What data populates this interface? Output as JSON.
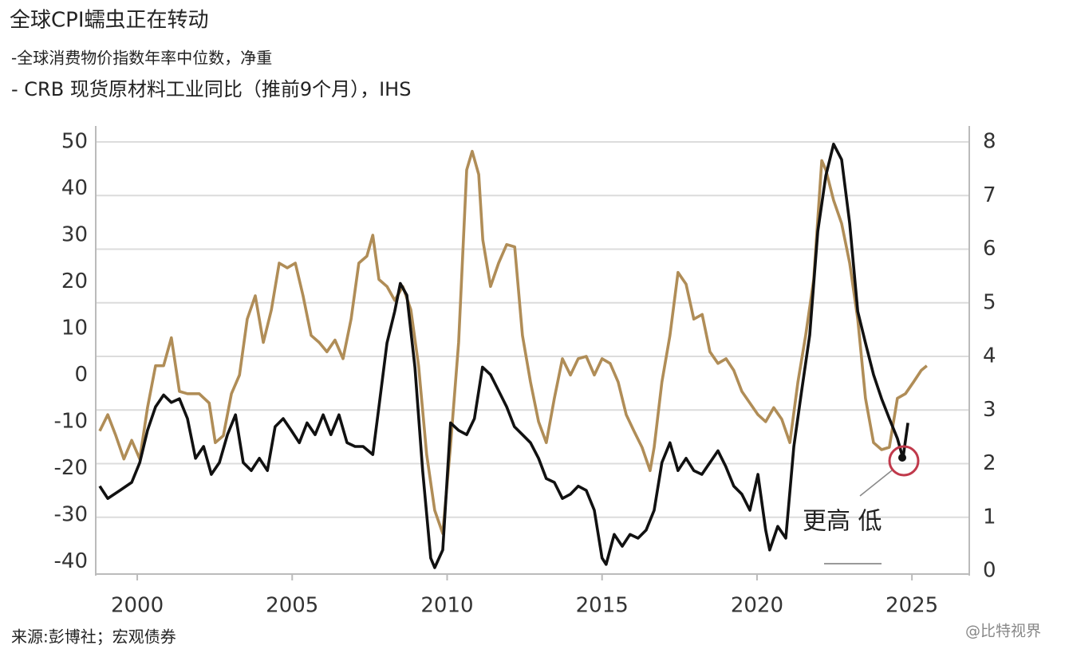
{
  "chart_data": {
    "type": "line",
    "title": "全球CPI蠕虫正在转动",
    "source": "来源:彭博社；宏观债券",
    "annotation": "更高 低",
    "watermark": "@比特视界",
    "xlim": [
      1998.66,
      2026.85
    ],
    "xticks": [
      2000,
      2005,
      2010,
      2015,
      2020,
      2025
    ],
    "ylim": [
      -42,
      50
    ],
    "yticks": [
      -40,
      -30,
      -20,
      -10,
      0,
      10,
      20,
      30,
      40,
      50
    ],
    "y2lim": [
      0,
      8
    ],
    "y2ticks": [
      0,
      1,
      2,
      3,
      4,
      5,
      6,
      7,
      8
    ],
    "grid": true,
    "series": [
      {
        "name": "-全球消费物价指数年率中位数，净重",
        "color": "#111111",
        "axis": "y2",
        "x": [
          1998.79,
          1999.05,
          1999.44,
          1999.82,
          2000.08,
          2000.33,
          2000.59,
          2000.85,
          2001.1,
          2001.36,
          2001.62,
          2001.88,
          2002.14,
          2002.39,
          2002.65,
          2002.91,
          2003.17,
          2003.42,
          2003.68,
          2003.94,
          2004.2,
          2004.45,
          2004.71,
          2004.97,
          2005.23,
          2005.48,
          2005.74,
          2006.0,
          2006.25,
          2006.51,
          2006.77,
          2007.03,
          2007.29,
          2007.6,
          2007.8,
          2008.06,
          2008.31,
          2008.49,
          2008.7,
          2008.96,
          2009.21,
          2009.47,
          2009.6,
          2009.86,
          2010.11,
          2010.37,
          2010.63,
          2010.88,
          2011.14,
          2011.4,
          2011.66,
          2011.92,
          2012.17,
          2012.43,
          2012.69,
          2012.95,
          2013.2,
          2013.46,
          2013.72,
          2013.98,
          2014.23,
          2014.49,
          2014.75,
          2015.0,
          2015.13,
          2015.39,
          2015.65,
          2015.9,
          2016.16,
          2016.42,
          2016.68,
          2016.93,
          2017.19,
          2017.45,
          2017.71,
          2017.96,
          2018.22,
          2018.48,
          2018.74,
          2018.99,
          2019.25,
          2019.51,
          2019.77,
          2020.03,
          2020.28,
          2020.41,
          2020.67,
          2020.93,
          2021.19,
          2021.44,
          2021.7,
          2021.96,
          2022.22,
          2022.47,
          2022.73,
          2022.99,
          2023.25,
          2023.5,
          2023.76,
          2024.02,
          2024.27,
          2024.53,
          2024.71,
          2024.87
        ],
        "values": [
          1.58,
          1.35,
          1.5,
          1.65,
          2.02,
          2.62,
          3.06,
          3.28,
          3.14,
          3.21,
          2.84,
          2.1,
          2.32,
          1.8,
          2.02,
          2.54,
          2.91,
          2.02,
          1.87,
          2.1,
          1.87,
          2.69,
          2.84,
          2.62,
          2.39,
          2.76,
          2.54,
          2.91,
          2.54,
          2.91,
          2.39,
          2.32,
          2.32,
          2.17,
          3.06,
          4.25,
          4.84,
          5.36,
          5.14,
          3.8,
          1.87,
          0.24,
          0.06,
          0.39,
          2.76,
          2.62,
          2.54,
          2.84,
          3.8,
          3.66,
          3.36,
          3.06,
          2.69,
          2.54,
          2.39,
          2.1,
          1.72,
          1.65,
          1.35,
          1.43,
          1.58,
          1.5,
          1.13,
          0.24,
          0.12,
          0.68,
          0.46,
          0.68,
          0.61,
          0.76,
          1.13,
          2.02,
          2.39,
          1.87,
          2.1,
          1.87,
          1.8,
          2.02,
          2.24,
          1.95,
          1.58,
          1.43,
          1.13,
          1.8,
          0.76,
          0.39,
          0.83,
          0.61,
          2.32,
          3.36,
          4.4,
          6.33,
          7.37,
          7.96,
          7.67,
          6.48,
          4.84,
          4.25,
          3.66,
          3.21,
          2.84,
          2.47,
          2.1,
          2.76
        ]
      },
      {
        "name": "- CRB 现货原材料工业同比（推前9个月），IHS",
        "color": "#b08d57",
        "axis": "y",
        "x": [
          1998.79,
          1999.05,
          1999.31,
          1999.57,
          1999.82,
          2000.08,
          2000.33,
          2000.59,
          2000.85,
          2001.1,
          2001.36,
          2001.62,
          2002.0,
          2002.32,
          2002.52,
          2002.78,
          2003.04,
          2003.3,
          2003.55,
          2003.81,
          2004.07,
          2004.33,
          2004.58,
          2004.84,
          2005.1,
          2005.35,
          2005.61,
          2005.87,
          2006.12,
          2006.38,
          2006.64,
          2006.9,
          2007.15,
          2007.41,
          2007.6,
          2007.8,
          2008.06,
          2008.31,
          2008.57,
          2008.83,
          2009.08,
          2009.34,
          2009.6,
          2009.86,
          2010.11,
          2010.37,
          2010.63,
          2010.81,
          2011.02,
          2011.15,
          2011.4,
          2011.66,
          2011.92,
          2012.18,
          2012.43,
          2012.69,
          2012.95,
          2013.2,
          2013.46,
          2013.72,
          2013.98,
          2014.23,
          2014.49,
          2014.75,
          2015.0,
          2015.26,
          2015.52,
          2015.78,
          2016.03,
          2016.29,
          2016.55,
          2016.68,
          2016.93,
          2017.19,
          2017.45,
          2017.71,
          2017.96,
          2018.23,
          2018.48,
          2018.74,
          2019.0,
          2019.25,
          2019.51,
          2019.77,
          2020.03,
          2020.28,
          2020.54,
          2020.8,
          2021.06,
          2021.32,
          2021.57,
          2021.83,
          2022.09,
          2022.22,
          2022.47,
          2022.73,
          2022.99,
          2023.25,
          2023.5,
          2023.76,
          2024.02,
          2024.27,
          2024.53,
          2024.79,
          2025.05,
          2025.3,
          2025.48
        ],
        "values": [
          -12,
          -8.5,
          -13,
          -18,
          -14,
          -18,
          -7,
          2,
          2,
          8,
          -3.5,
          -4,
          -4,
          -6,
          -14.5,
          -13,
          -4,
          0,
          12,
          17,
          7,
          14,
          24,
          23,
          24,
          17,
          8.5,
          7,
          5,
          7.5,
          3.5,
          12,
          24,
          25.5,
          30,
          20.5,
          19,
          16,
          19,
          14,
          2,
          -17,
          -29,
          -34,
          -15,
          7,
          44,
          48,
          43,
          29,
          19,
          24,
          28,
          27.5,
          8.5,
          -1.5,
          -10,
          -14.5,
          -5,
          3.5,
          0,
          3.5,
          4,
          0,
          3.5,
          2.5,
          -1.5,
          -8.5,
          -12,
          -15.5,
          -20.5,
          -15.5,
          -1.5,
          8.5,
          22,
          19.5,
          12,
          13,
          5,
          2.5,
          3.5,
          1,
          -3.5,
          -6,
          -8.5,
          -10,
          -7,
          -9.5,
          -14.5,
          -1.5,
          8.5,
          20.5,
          46,
          44,
          37.5,
          32.5,
          24,
          12,
          -5,
          -14.5,
          -16,
          -15.5,
          -5,
          -4,
          -1.5,
          1,
          2
        ]
      }
    ]
  }
}
